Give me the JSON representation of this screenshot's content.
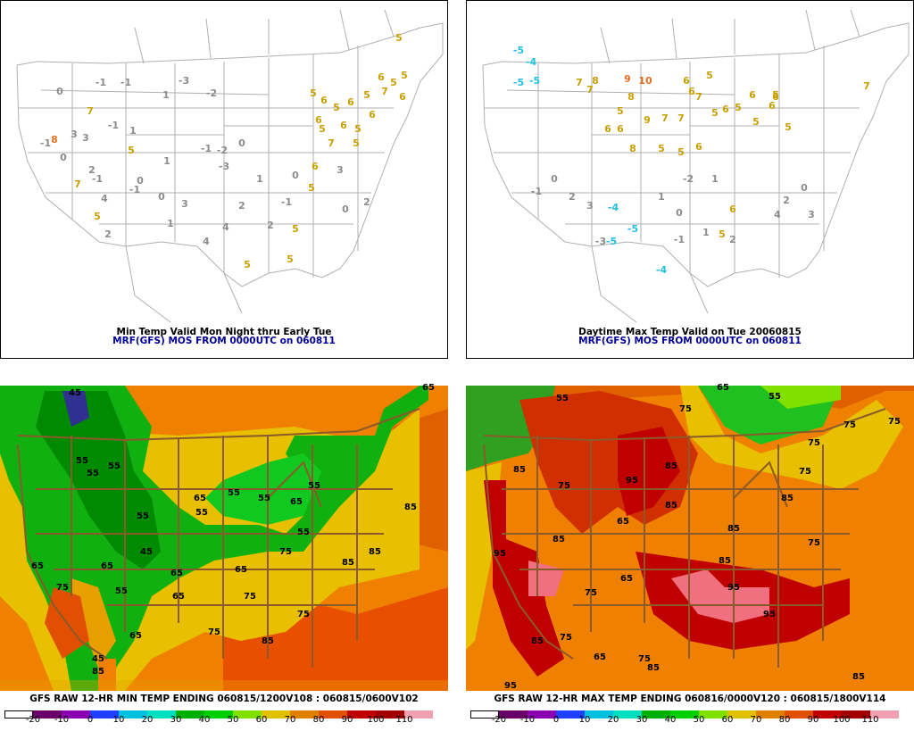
{
  "panels": {
    "top_left": {
      "title_line1": "Min Temp Valid Mon Night thru Early Tue",
      "title_line2": "MRF(GFS) MOS FROM 0000UTC on 060811",
      "values": [
        {
          "v": "5",
          "c": "yellow"
        },
        {
          "v": "-1",
          "c": "gray"
        },
        {
          "v": "0",
          "c": "gray"
        },
        {
          "v": "-1",
          "c": "gray"
        },
        {
          "v": "7",
          "c": "yellow"
        },
        {
          "v": "-3",
          "c": "gray"
        },
        {
          "v": "1",
          "c": "gray"
        },
        {
          "v": "3",
          "c": "gray"
        },
        {
          "v": "8",
          "c": "orange"
        },
        {
          "v": "0",
          "c": "gray"
        },
        {
          "v": "-2",
          "c": "gray"
        },
        {
          "v": "-1",
          "c": "gray"
        },
        {
          "v": "3",
          "c": "gray"
        },
        {
          "v": "1",
          "c": "gray"
        },
        {
          "v": "-1",
          "c": "gray"
        },
        {
          "v": "2",
          "c": "gray"
        },
        {
          "v": "5",
          "c": "yellow"
        },
        {
          "v": "1",
          "c": "gray"
        },
        {
          "v": "-1",
          "c": "gray"
        },
        {
          "v": "7",
          "c": "yellow"
        },
        {
          "v": "0",
          "c": "gray"
        },
        {
          "v": "-1",
          "c": "gray"
        },
        {
          "v": "-2",
          "c": "gray"
        },
        {
          "v": "-3",
          "c": "gray"
        },
        {
          "v": "4",
          "c": "gray"
        },
        {
          "v": "5",
          "c": "yellow"
        },
        {
          "v": "2",
          "c": "gray"
        },
        {
          "v": "-1",
          "c": "gray"
        },
        {
          "v": "0",
          "c": "gray"
        },
        {
          "v": "3",
          "c": "gray"
        },
        {
          "v": "1",
          "c": "gray"
        },
        {
          "v": "4",
          "c": "gray"
        },
        {
          "v": "2",
          "c": "gray"
        },
        {
          "v": "-1",
          "c": "gray"
        },
        {
          "v": "0",
          "c": "gray"
        },
        {
          "v": "5",
          "c": "yellow"
        },
        {
          "v": "6",
          "c": "yellow"
        },
        {
          "v": "5",
          "c": "yellow"
        },
        {
          "v": "6",
          "c": "yellow"
        },
        {
          "v": "5",
          "c": "yellow"
        },
        {
          "v": "7",
          "c": "yellow"
        },
        {
          "v": "6",
          "c": "yellow"
        },
        {
          "v": "5",
          "c": "yellow"
        },
        {
          "v": "6",
          "c": "yellow"
        },
        {
          "v": "5",
          "c": "yellow"
        },
        {
          "v": "6",
          "c": "yellow"
        },
        {
          "v": "7",
          "c": "yellow"
        },
        {
          "v": "5",
          "c": "yellow"
        },
        {
          "v": "6",
          "c": "yellow"
        },
        {
          "v": "5",
          "c": "yellow"
        },
        {
          "v": "6",
          "c": "yellow"
        },
        {
          "v": "5",
          "c": "yellow"
        },
        {
          "v": "6",
          "c": "yellow"
        },
        {
          "v": "5",
          "c": "yellow"
        },
        {
          "v": "5",
          "c": "yellow"
        },
        {
          "v": "5",
          "c": "yellow"
        },
        {
          "v": "5",
          "c": "yellow"
        },
        {
          "v": "0",
          "c": "gray"
        },
        {
          "v": "2",
          "c": "gray"
        },
        {
          "v": "3",
          "c": "gray"
        },
        {
          "v": "0",
          "c": "gray"
        },
        {
          "v": "1",
          "c": "gray"
        },
        {
          "v": "2",
          "c": "gray"
        },
        {
          "v": "4",
          "c": "gray"
        }
      ]
    },
    "top_right": {
      "title_line1": "Daytime Max Temp Valid on Tue 20060815",
      "title_line2": "MRF(GFS) MOS FROM 0000UTC on 060811",
      "values": [
        {
          "v": "-5",
          "c": "cyan"
        },
        {
          "v": "-4",
          "c": "cyan"
        },
        {
          "v": "-5",
          "c": "cyan"
        },
        {
          "v": "-5",
          "c": "cyan"
        },
        {
          "v": "-4",
          "c": "cyan"
        },
        {
          "v": "-5",
          "c": "cyan"
        },
        {
          "v": "-5",
          "c": "cyan"
        },
        {
          "v": "-4",
          "c": "cyan"
        },
        {
          "v": "7",
          "c": "yellow"
        },
        {
          "v": "8",
          "c": "yellow"
        },
        {
          "v": "7",
          "c": "yellow"
        },
        {
          "v": "9",
          "c": "orange"
        },
        {
          "v": "10",
          "c": "orange"
        },
        {
          "v": "8",
          "c": "yellow"
        },
        {
          "v": "6",
          "c": "yellow"
        },
        {
          "v": "7",
          "c": "yellow"
        },
        {
          "v": "5",
          "c": "yellow"
        },
        {
          "v": "6",
          "c": "yellow"
        },
        {
          "v": "9",
          "c": "yellow"
        },
        {
          "v": "7",
          "c": "yellow"
        },
        {
          "v": "7",
          "c": "yellow"
        },
        {
          "v": "5",
          "c": "yellow"
        },
        {
          "v": "6",
          "c": "yellow"
        },
        {
          "v": "6",
          "c": "yellow"
        },
        {
          "v": "5",
          "c": "yellow"
        },
        {
          "v": "6",
          "c": "yellow"
        },
        {
          "v": "5",
          "c": "yellow"
        },
        {
          "v": "8",
          "c": "yellow"
        },
        {
          "v": "5",
          "c": "yellow"
        },
        {
          "v": "5",
          "c": "yellow"
        },
        {
          "v": "6",
          "c": "yellow"
        },
        {
          "v": "5",
          "c": "yellow"
        },
        {
          "v": "6",
          "c": "yellow"
        },
        {
          "v": "5",
          "c": "yellow"
        },
        {
          "v": "7",
          "c": "yellow"
        },
        {
          "v": "5",
          "c": "yellow"
        },
        {
          "v": "6",
          "c": "yellow"
        },
        {
          "v": "6",
          "c": "yellow"
        },
        {
          "v": "5",
          "c": "yellow"
        },
        {
          "v": "6",
          "c": "yellow"
        },
        {
          "v": "-1",
          "c": "gray"
        },
        {
          "v": "0",
          "c": "gray"
        },
        {
          "v": "2",
          "c": "gray"
        },
        {
          "v": "3",
          "c": "gray"
        },
        {
          "v": "-3",
          "c": "gray"
        },
        {
          "v": "1",
          "c": "gray"
        },
        {
          "v": "0",
          "c": "gray"
        },
        {
          "v": "-2",
          "c": "gray"
        },
        {
          "v": "1",
          "c": "gray"
        },
        {
          "v": "4",
          "c": "gray"
        },
        {
          "v": "2",
          "c": "gray"
        },
        {
          "v": "3",
          "c": "gray"
        },
        {
          "v": "0",
          "c": "gray"
        },
        {
          "v": "-1",
          "c": "gray"
        },
        {
          "v": "1",
          "c": "gray"
        },
        {
          "v": "2",
          "c": "gray"
        }
      ]
    },
    "bottom_left": {
      "title": "GFS RAW 12-HR MIN TEMP ENDING 060815/1200V108 : 060815/0600V102",
      "contour_labels": [
        "65",
        "45",
        "55",
        "55",
        "55",
        "65",
        "55",
        "55",
        "55",
        "65",
        "55",
        "65",
        "55",
        "65",
        "75",
        "45",
        "45",
        "85",
        "65",
        "75",
        "85",
        "65",
        "55",
        "75",
        "85",
        "65",
        "75",
        "85",
        "55",
        "65",
        "75",
        "85"
      ]
    },
    "bottom_right": {
      "title": "GFS RAW 12-HR MAX TEMP ENDING 060816/0000V120 : 060815/1800V114",
      "contour_labels": [
        "65",
        "55",
        "55",
        "75",
        "85",
        "95",
        "85",
        "85",
        "75",
        "75",
        "65",
        "85",
        "95",
        "85",
        "75",
        "85",
        "75",
        "65",
        "85",
        "95",
        "85",
        "95",
        "75",
        "85",
        "65",
        "75",
        "75",
        "75",
        "75",
        "85",
        "95"
      ]
    }
  },
  "colorbar": {
    "ticks": [
      "-20",
      "-10",
      "0",
      "10",
      "20",
      "30",
      "40",
      "50",
      "60",
      "70",
      "80",
      "90",
      "100",
      "110"
    ],
    "colors": [
      "#ffffff",
      "#6a006a",
      "#8a00b0",
      "#2040ff",
      "#00c0e0",
      "#00e0c0",
      "#00b000",
      "#00d000",
      "#80e000",
      "#e0c000",
      "#e08000",
      "#e05000",
      "#c00000",
      "#a00000",
      "#f0a0b0"
    ]
  },
  "colors": {
    "gray": "#8c8c8c",
    "yellow": "#c8a000",
    "orange": "#e07020",
    "cyan": "#20c0e0",
    "map_line": "#b0b0b0",
    "state_line_dark": "#8b5a2b"
  }
}
